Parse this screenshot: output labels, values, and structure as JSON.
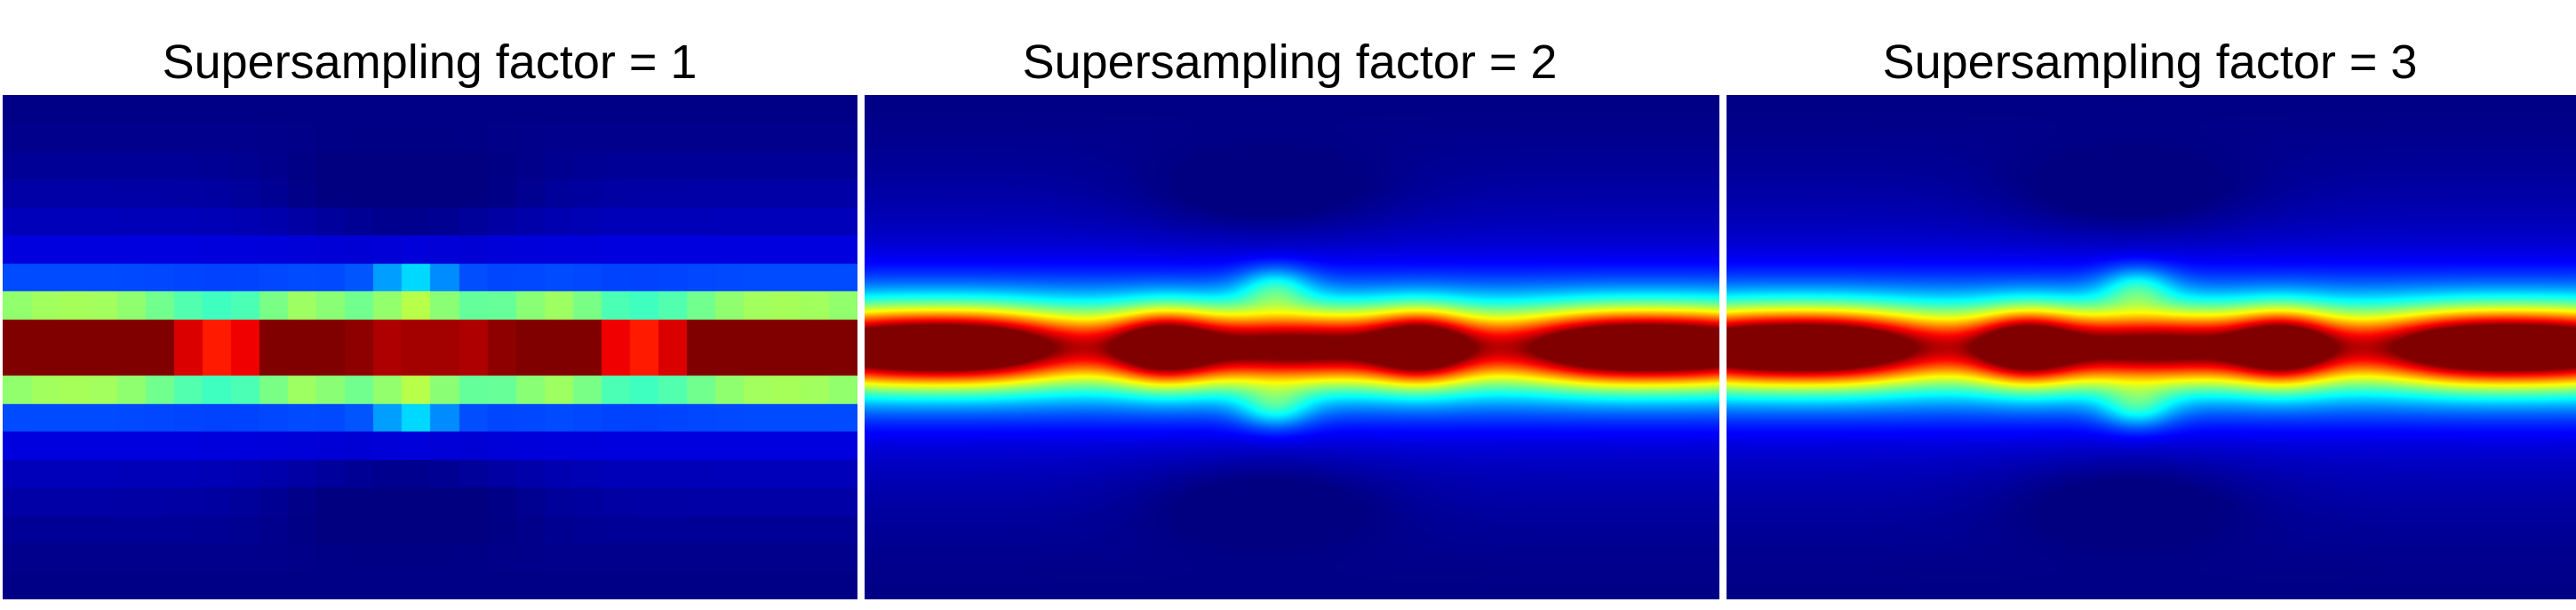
{
  "chart_data": [
    {
      "type": "heatmap",
      "title": "Supersampling factor = 1",
      "supersampling_factor": 1,
      "colormap": "jet",
      "smooth": false
    },
    {
      "type": "heatmap",
      "title": "Supersampling factor = 2",
      "supersampling_factor": 2,
      "colormap": "jet",
      "smooth": true
    },
    {
      "type": "heatmap",
      "title": "Supersampling factor = 3",
      "supersampling_factor": 3,
      "colormap": "jet",
      "smooth": true
    }
  ],
  "colors": {
    "background": "#ffffff",
    "separator": "#ffffff",
    "colormap_low": "#00008f",
    "colormap_high": "#800000"
  }
}
